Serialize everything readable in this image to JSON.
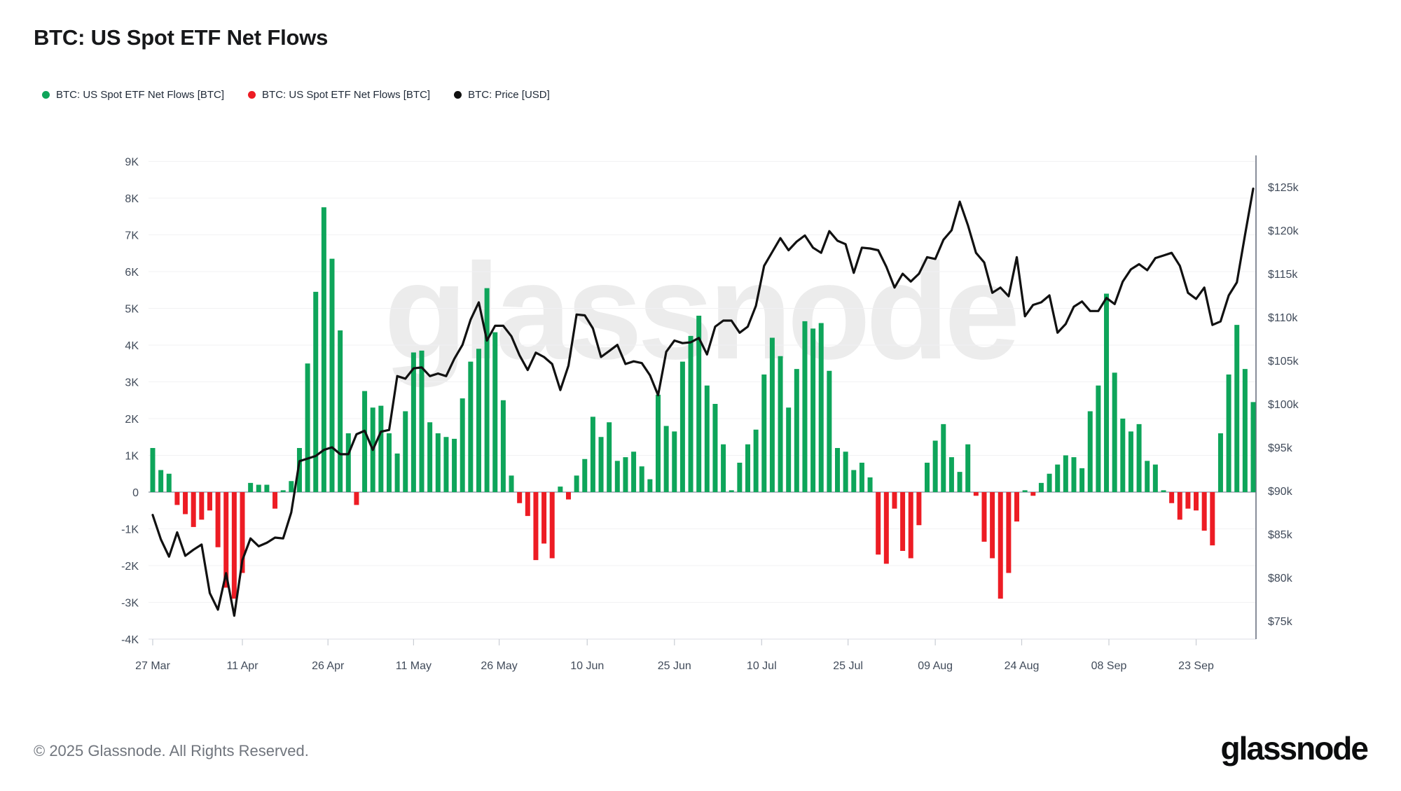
{
  "header": {
    "title": "BTC: US Spot ETF Net Flows"
  },
  "legend": {
    "items": [
      {
        "label": "BTC: US Spot ETF Net Flows [BTC]",
        "color": "#0ea55a"
      },
      {
        "label": "BTC: US Spot ETF Net Flows [BTC]",
        "color": "#ed1c24"
      },
      {
        "label": "BTC: Price [USD]",
        "color": "#111111"
      }
    ]
  },
  "watermark": "glassnode",
  "footer": {
    "copyright": "© 2025 Glassnode. All Rights Reserved.",
    "wordmark": "glassnode"
  },
  "chart_data": {
    "type": "combo",
    "title": "BTC: US Spot ETF Net Flows",
    "x_unit": "date (weekdays, 2025)",
    "x_dates": [
      "27 Mar",
      "28 Mar",
      "31 Mar",
      "01 Apr",
      "02 Apr",
      "03 Apr",
      "04 Apr",
      "07 Apr",
      "08 Apr",
      "09 Apr",
      "10 Apr",
      "11 Apr",
      "14 Apr",
      "15 Apr",
      "16 Apr",
      "17 Apr",
      "18 Apr",
      "21 Apr",
      "22 Apr",
      "23 Apr",
      "24 Apr",
      "25 Apr",
      "28 Apr",
      "29 Apr",
      "30 Apr",
      "01 May",
      "02 May",
      "05 May",
      "06 May",
      "07 May",
      "08 May",
      "09 May",
      "12 May",
      "13 May",
      "14 May",
      "15 May",
      "16 May",
      "19 May",
      "20 May",
      "21 May",
      "22 May",
      "23 May",
      "26 May",
      "27 May",
      "28 May",
      "29 May",
      "30 May",
      "02 Jun",
      "03 Jun",
      "04 Jun",
      "05 Jun",
      "06 Jun",
      "09 Jun",
      "10 Jun",
      "11 Jun",
      "12 Jun",
      "13 Jun",
      "16 Jun",
      "17 Jun",
      "18 Jun",
      "19 Jun",
      "20 Jun",
      "23 Jun",
      "24 Jun",
      "25 Jun",
      "26 Jun",
      "27 Jun",
      "30 Jun",
      "01 Jul",
      "02 Jul",
      "03 Jul",
      "04 Jul",
      "07 Jul",
      "08 Jul",
      "09 Jul",
      "10 Jul",
      "11 Jul",
      "14 Jul",
      "15 Jul",
      "16 Jul",
      "17 Jul",
      "18 Jul",
      "21 Jul",
      "22 Jul",
      "23 Jul",
      "24 Jul",
      "25 Jul",
      "28 Jul",
      "29 Jul",
      "30 Jul",
      "31 Jul",
      "01 Aug",
      "04 Aug",
      "05 Aug",
      "06 Aug",
      "07 Aug",
      "08 Aug",
      "11 Aug",
      "12 Aug",
      "13 Aug",
      "14 Aug",
      "15 Aug",
      "18 Aug",
      "19 Aug",
      "20 Aug",
      "21 Aug",
      "22 Aug",
      "25 Aug",
      "26 Aug",
      "27 Aug",
      "28 Aug",
      "29 Aug",
      "01 Sep",
      "02 Sep",
      "03 Sep",
      "04 Sep",
      "05 Sep",
      "08 Sep",
      "09 Sep",
      "10 Sep",
      "11 Sep",
      "12 Sep",
      "15 Sep",
      "16 Sep",
      "17 Sep",
      "18 Sep",
      "19 Sep",
      "22 Sep",
      "23 Sep",
      "24 Sep",
      "25 Sep",
      "26 Sep",
      "29 Sep",
      "30 Sep",
      "01 Oct",
      "02 Oct"
    ],
    "series": [
      {
        "name": "BTC: US Spot ETF Net Flows [BTC]",
        "type": "bar",
        "unit": "BTC (thousands, K)",
        "positive_color": "#0ea55a",
        "negative_color": "#ed1c24",
        "values": [
          1.2,
          0.6,
          0.5,
          -0.35,
          -0.6,
          -0.95,
          -0.75,
          -0.5,
          -1.5,
          -2.6,
          -2.9,
          -2.2,
          0.25,
          0.2,
          0.2,
          -0.45,
          0.05,
          0.3,
          1.2,
          3.5,
          5.45,
          7.75,
          6.35,
          4.4,
          1.6,
          -0.35,
          2.75,
          2.3,
          2.35,
          1.6,
          1.05,
          2.2,
          3.8,
          3.85,
          1.9,
          1.6,
          1.5,
          1.45,
          2.55,
          3.55,
          3.9,
          5.55,
          4.35,
          2.5,
          0.45,
          -0.3,
          -0.65,
          -1.85,
          -1.4,
          -1.8,
          0.15,
          -0.2,
          0.45,
          0.9,
          2.05,
          1.5,
          1.9,
          0.85,
          0.95,
          1.1,
          0.7,
          0.35,
          2.65,
          1.8,
          1.65,
          3.55,
          4.25,
          4.8,
          2.9,
          2.4,
          1.3,
          0.05,
          0.8,
          1.3,
          1.7,
          3.2,
          4.2,
          3.7,
          2.3,
          3.35,
          4.65,
          4.45,
          4.6,
          3.3,
          1.2,
          1.1,
          0.6,
          0.8,
          0.4,
          -1.7,
          -1.95,
          -0.45,
          -1.6,
          -1.8,
          -0.9,
          0.8,
          1.4,
          1.85,
          0.95,
          0.55,
          1.3,
          -0.1,
          -1.35,
          -1.8,
          -2.9,
          -2.2,
          -0.8,
          0.05,
          -0.1,
          0.25,
          0.5,
          0.75,
          1.0,
          0.95,
          0.65,
          2.2,
          2.9,
          5.4,
          3.25,
          2.0,
          1.65,
          1.85,
          0.85,
          0.75,
          0.05,
          -0.3,
          -0.75,
          -0.45,
          -0.5,
          -1.05,
          -1.45,
          1.6,
          3.2,
          4.55,
          3.35,
          2.45
        ]
      },
      {
        "name": "BTC: Price [USD]",
        "type": "line",
        "unit": "USD (thousands, $k)",
        "color": "#111111",
        "values": [
          87.2,
          84.4,
          82.4,
          85.2,
          82.5,
          83.2,
          83.8,
          78.2,
          76.3,
          80.5,
          75.6,
          82.0,
          84.5,
          83.6,
          84.0,
          84.6,
          84.5,
          87.5,
          93.4,
          93.7,
          94.0,
          94.7,
          95.0,
          94.2,
          94.2,
          96.5,
          96.9,
          94.7,
          96.8,
          97.0,
          103.2,
          102.9,
          104.1,
          104.2,
          103.2,
          103.5,
          103.2,
          105.2,
          106.8,
          109.7,
          111.7,
          107.3,
          109.0,
          109.0,
          107.8,
          105.6,
          103.9,
          105.9,
          105.4,
          104.6,
          101.6,
          104.4,
          110.3,
          110.2,
          108.7,
          105.4,
          106.1,
          106.8,
          104.6,
          104.9,
          104.7,
          103.3,
          101.0,
          106.0,
          107.3,
          107.0,
          107.1,
          107.6,
          105.7,
          108.9,
          109.6,
          109.6,
          108.2,
          108.9,
          111.3,
          115.9,
          117.5,
          119.1,
          117.7,
          118.7,
          119.4,
          118.0,
          117.4,
          119.9,
          118.8,
          118.4,
          115.1,
          118.0,
          117.9,
          117.7,
          115.8,
          113.4,
          115.0,
          114.1,
          115.0,
          116.9,
          116.7,
          118.9,
          120.0,
          123.3,
          120.6,
          117.4,
          116.3,
          112.8,
          113.4,
          112.4,
          116.9,
          110.1,
          111.4,
          111.7,
          112.5,
          108.2,
          109.2,
          111.2,
          111.8,
          110.7,
          110.7,
          112.2,
          111.5,
          114.1,
          115.5,
          116.1,
          115.4,
          116.8,
          117.1,
          117.4,
          115.9,
          112.8,
          112.1,
          113.4,
          109.1,
          109.5,
          112.5,
          114.0,
          119.5,
          124.8
        ]
      }
    ],
    "left_axis": {
      "label": "Net Flows [BTC]",
      "ticks": [
        "9K",
        "8K",
        "7K",
        "6K",
        "5K",
        "4K",
        "3K",
        "2K",
        "1K",
        "0",
        "-1K",
        "-2K",
        "-3K",
        "-4K"
      ],
      "tick_values": [
        9,
        8,
        7,
        6,
        5,
        4,
        3,
        2,
        1,
        0,
        -1,
        -2,
        -3,
        -4
      ],
      "min": -4,
      "max": 9,
      "grid": true
    },
    "right_axis": {
      "label": "Price [USD]",
      "ticks": [
        "$125k",
        "$120k",
        "$115k",
        "$110k",
        "$105k",
        "$100k",
        "$95k",
        "$90k",
        "$85k",
        "$80k",
        "$75k"
      ],
      "tick_values": [
        125,
        120,
        115,
        110,
        105,
        100,
        95,
        90,
        85,
        80,
        75
      ],
      "min": 75,
      "max": 125,
      "grid": false
    },
    "x_ticks": [
      {
        "label": "27 Mar",
        "index": 0
      },
      {
        "label": "11 Apr",
        "index": 11
      },
      {
        "label": "26 Apr",
        "index": 21.5
      },
      {
        "label": "11 May",
        "index": 32
      },
      {
        "label": "26 May",
        "index": 42.5
      },
      {
        "label": "10 Jun",
        "index": 53.3
      },
      {
        "label": "25 Jun",
        "index": 64
      },
      {
        "label": "10 Jul",
        "index": 74.7
      },
      {
        "label": "25 Jul",
        "index": 85.3
      },
      {
        "label": "09 Aug",
        "index": 96
      },
      {
        "label": "24 Aug",
        "index": 106.6
      },
      {
        "label": "08 Sep",
        "index": 117.3
      },
      {
        "label": "23 Sep",
        "index": 128
      }
    ],
    "legend_position": "top-left",
    "grid": "horizontal-only"
  }
}
